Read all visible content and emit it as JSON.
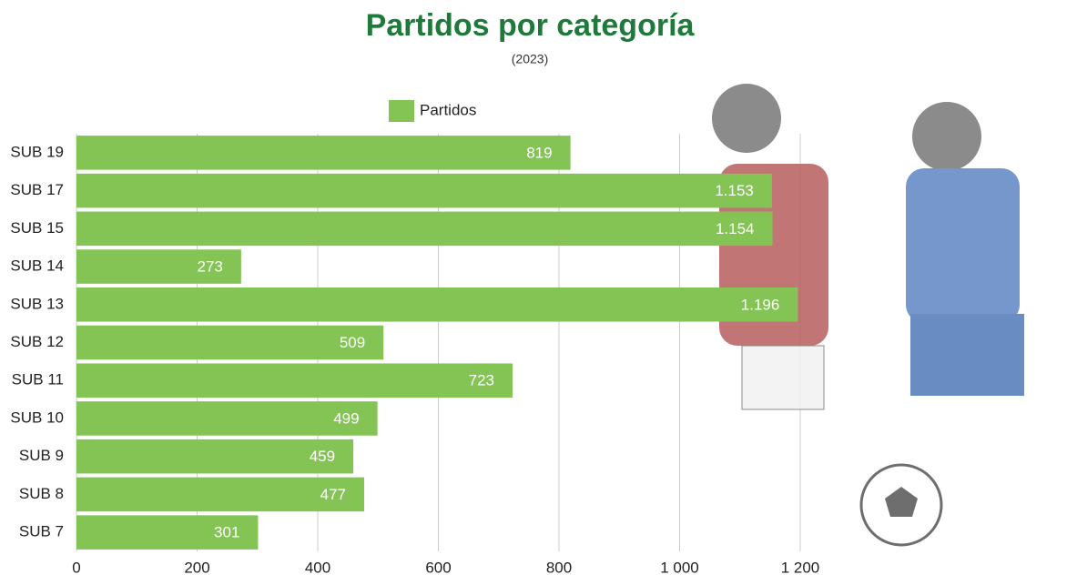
{
  "chart_data": {
    "type": "bar",
    "orientation": "horizontal",
    "title": "Partidos por categoría",
    "subtitle": "(2023)",
    "categories": [
      "SUB 19",
      "SUB 17",
      "SUB 15",
      "SUB 14",
      "SUB 13",
      "SUB 12",
      "SUB 11",
      "SUB 10",
      "SUB 9",
      "SUB 8",
      "SUB 7"
    ],
    "series": [
      {
        "name": "Partidos",
        "color": "#84c455",
        "values": [
          819,
          1153,
          1154,
          273,
          1196,
          509,
          723,
          499,
          459,
          477,
          301
        ],
        "value_labels": [
          "819",
          "1.153",
          "1.154",
          "273",
          "1.196",
          "509",
          "723",
          "499",
          "459",
          "477",
          "301"
        ]
      }
    ],
    "xlim": [
      0,
      1200
    ],
    "xticks": [
      0,
      200,
      400,
      600,
      800,
      {
        "value": 1000,
        "label": "1 000"
      },
      {
        "value": 1200,
        "label": "1 200"
      }
    ],
    "grid": true,
    "legend": "top"
  }
}
